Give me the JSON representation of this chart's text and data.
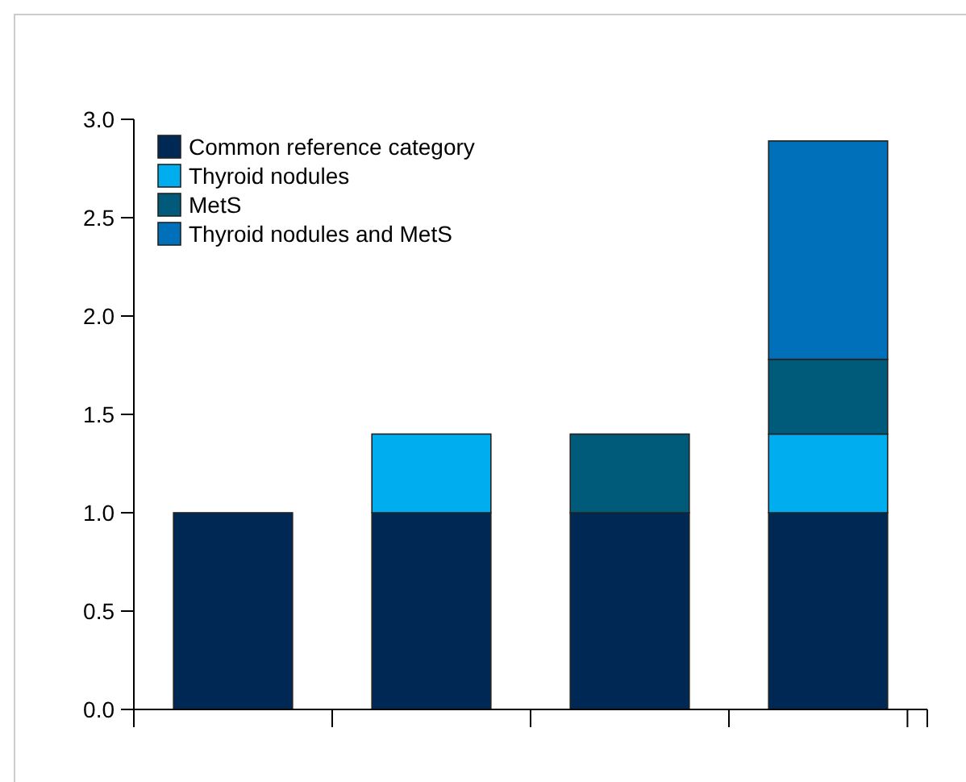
{
  "chart_data": {
    "type": "bar",
    "stacked": true,
    "categories": [
      null,
      null,
      null,
      null
    ],
    "series": [
      {
        "name": "Common reference category",
        "color": "#002855",
        "values": [
          1.0,
          1.0,
          1.0,
          1.0
        ]
      },
      {
        "name": "Thyroid nodules",
        "color": "#00aeef",
        "values": [
          null,
          0.4,
          null,
          0.4
        ]
      },
      {
        "name": "MetS",
        "color": "#005a7a",
        "values": [
          null,
          null,
          0.4,
          0.38
        ]
      },
      {
        "name": "Thyroid nodules and MetS",
        "color": "#0070bb",
        "values": [
          null,
          null,
          null,
          1.11
        ]
      }
    ],
    "ylim": [
      0,
      3
    ],
    "yticks": [
      {
        "value": 0,
        "label": "0.0"
      },
      {
        "value": 0.5,
        "label": "0.5"
      },
      {
        "value": 1,
        "label": "1.0"
      },
      {
        "value": 1.5,
        "label": "1.5"
      },
      {
        "value": 2,
        "label": "2.0"
      },
      {
        "value": 2.5,
        "label": "2.5"
      },
      {
        "value": 3,
        "label": "3.0"
      }
    ],
    "grid": false,
    "legend": "top left"
  }
}
